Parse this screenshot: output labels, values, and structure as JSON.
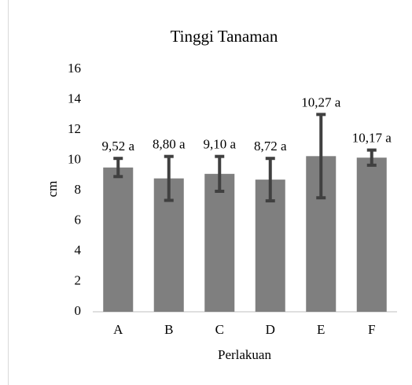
{
  "chart_data": {
    "type": "bar",
    "title": "Tinggi Tanaman",
    "x_label": "Perlakuan",
    "y_label": "cm",
    "categories": [
      "A",
      "B",
      "C",
      "D",
      "E",
      "F"
    ],
    "values": [
      9.52,
      8.8,
      9.1,
      8.72,
      10.27,
      10.17
    ],
    "value_labels": [
      "9,52 a",
      "8,80 a",
      "9,10 a",
      "8,72 a",
      "10,27 a",
      "10,17 a"
    ],
    "errors": [
      0.6,
      1.45,
      1.15,
      1.4,
      2.75,
      0.5
    ],
    "color": "#7f7f7f",
    "error_color": "#404040",
    "ylim": [
      0,
      16
    ],
    "yticks": [
      0,
      2,
      4,
      6,
      8,
      10,
      12,
      14,
      16
    ],
    "grid": false
  }
}
